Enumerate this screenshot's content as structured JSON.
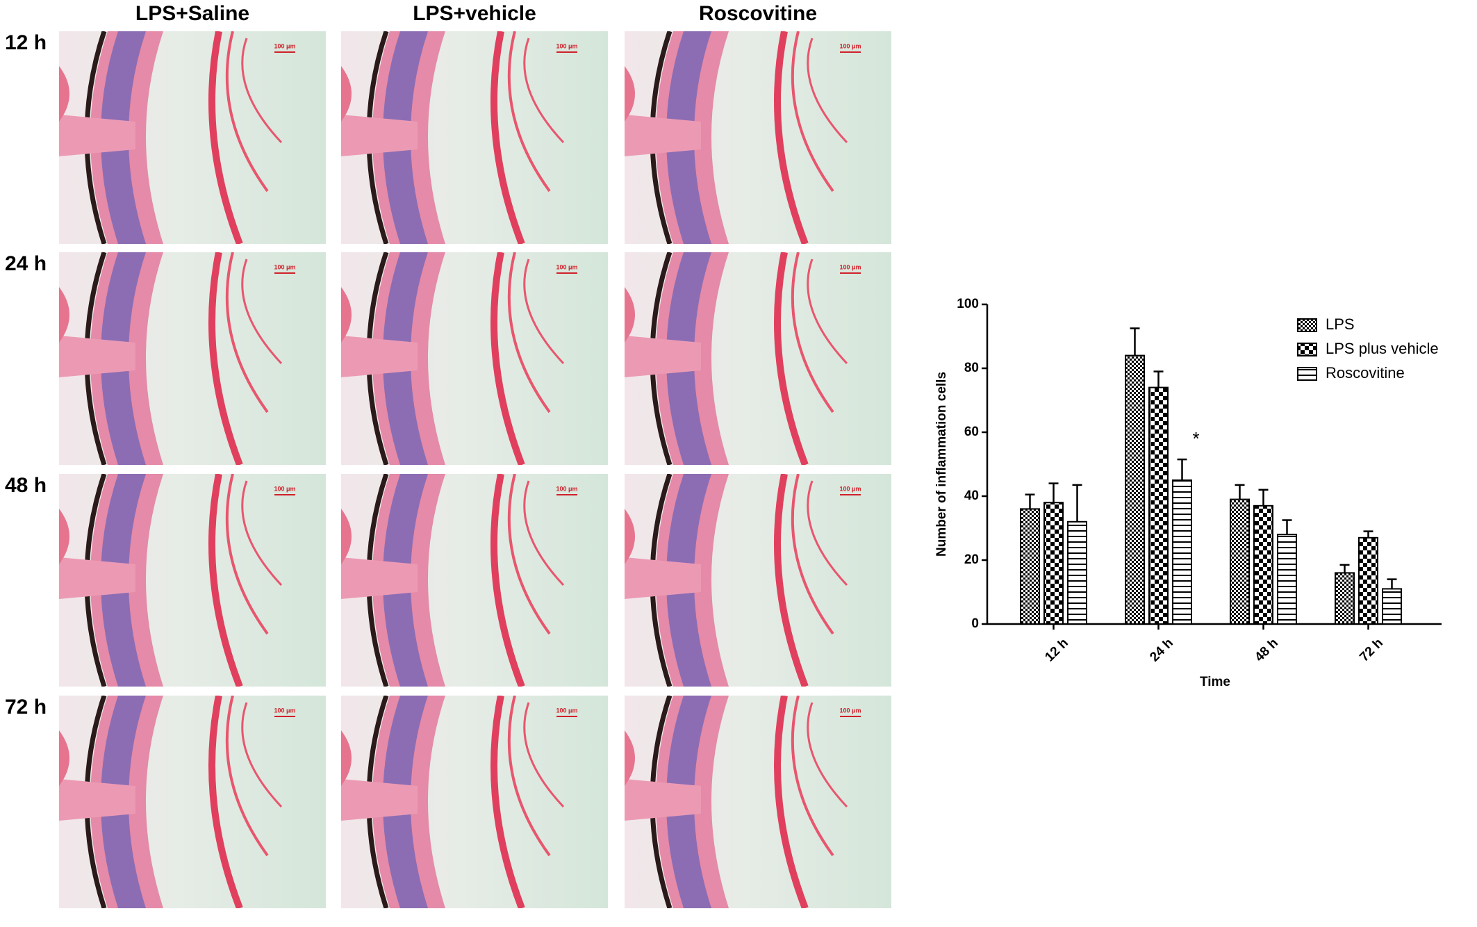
{
  "panels": {
    "columns": [
      "LPS+Saline",
      "LPS+vehicle",
      "Roscovitine"
    ],
    "rows": [
      "12 h",
      "24 h",
      "48 h",
      "72 h"
    ],
    "scale_bar": "100 μm"
  },
  "chart_data": {
    "type": "bar",
    "y_label": "Number of inflammation cells",
    "x_label": "Time",
    "categories": [
      "12 h",
      "24 h",
      "48 h",
      "72 h"
    ],
    "series": [
      {
        "name": "LPS",
        "color": "#000000",
        "pattern": "checker-fine",
        "values": [
          36,
          84,
          39,
          16
        ],
        "errors": [
          4.5,
          8.5,
          4.5,
          2.5
        ]
      },
      {
        "name": "LPS plus vehicle",
        "color": "#000000",
        "pattern": "checker",
        "values": [
          38,
          74,
          37,
          27
        ],
        "errors": [
          6,
          5,
          5,
          2
        ]
      },
      {
        "name": "Roscovitine",
        "color": "#000000",
        "pattern": "horizontal-lines",
        "values": [
          32,
          45,
          28,
          11
        ],
        "errors": [
          11.5,
          6.5,
          4.5,
          3
        ],
        "markers": [
          null,
          "*",
          null,
          null
        ]
      }
    ],
    "ylim": [
      0,
      100
    ],
    "yticks": [
      0,
      20,
      40,
      60,
      80,
      100
    ],
    "legend": "top-right",
    "grid": false
  }
}
